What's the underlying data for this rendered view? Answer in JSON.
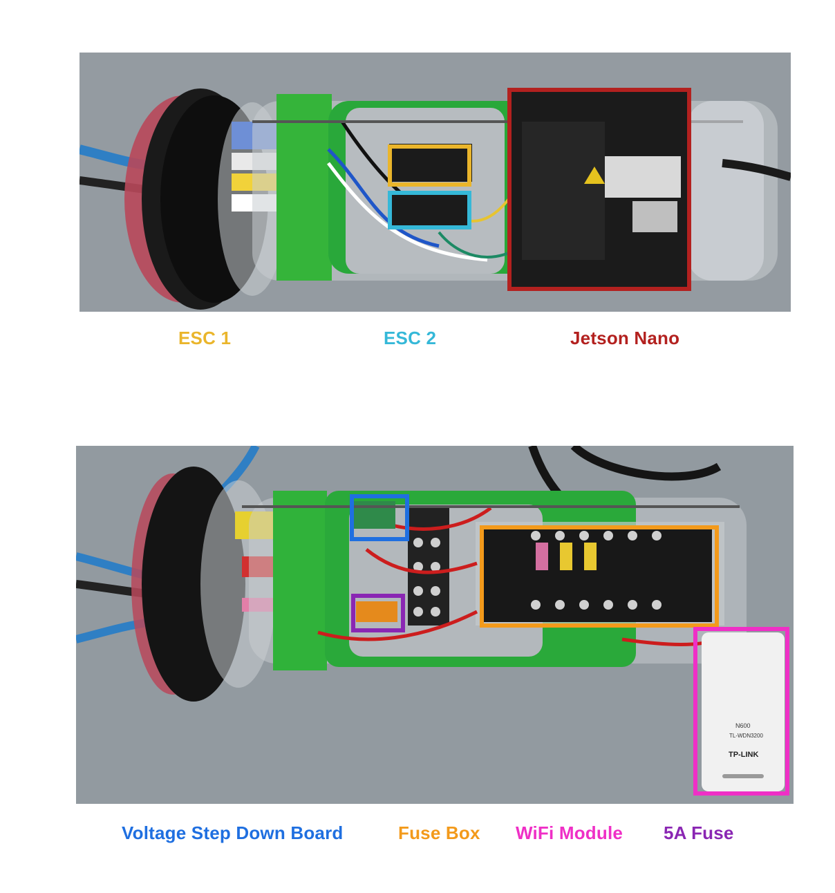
{
  "top_photo": {
    "labels": [
      {
        "id": "esc1",
        "text": "ESC 1",
        "color": "#eab52b"
      },
      {
        "id": "esc2",
        "text": "ESC 2",
        "color": "#35b8d8"
      },
      {
        "id": "jetson",
        "text": "Jetson Nano",
        "color": "#b3211f"
      }
    ]
  },
  "bottom_photo": {
    "labels": [
      {
        "id": "voltage",
        "text": "Voltage Step Down Board",
        "color": "#1f6fe0"
      },
      {
        "id": "fusebox",
        "text": "Fuse Box",
        "color": "#f39a1b"
      },
      {
        "id": "wifi",
        "text": "WiFi Module",
        "color": "#ef2fc6"
      },
      {
        "id": "fuse5a",
        "text": "5A Fuse",
        "color": "#8a26b3"
      }
    ],
    "wifi_dongle_text": {
      "model_line1": "N600",
      "model_line2": "TL-WDN3200",
      "brand": "TP-LINK"
    }
  }
}
